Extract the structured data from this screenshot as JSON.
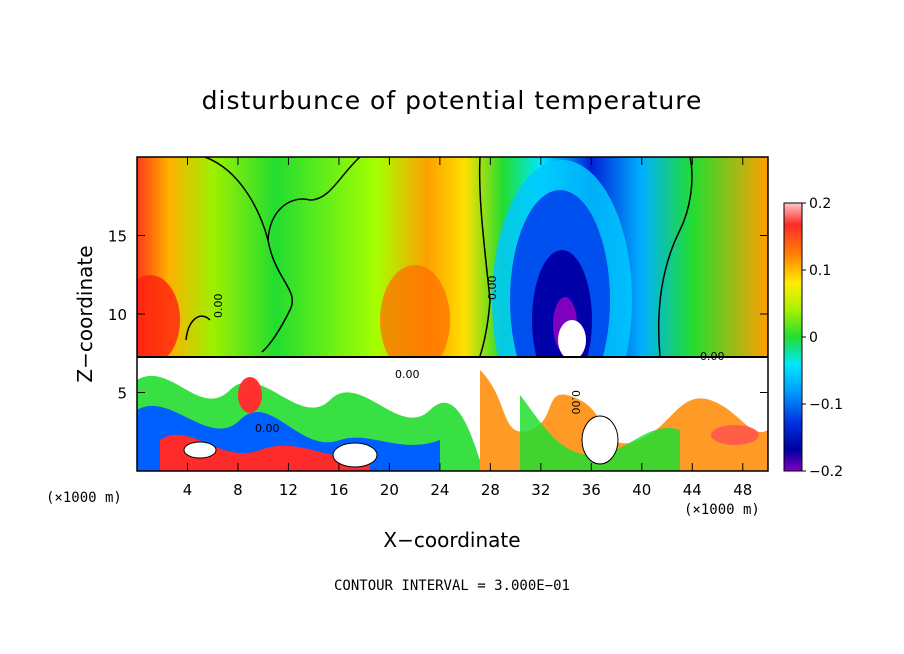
{
  "chart_data": {
    "type": "heatmap",
    "title": "disturbunce of potential temperature",
    "xlabel": "X−coordinate",
    "ylabel": "Z−coordinate",
    "x_unit": "(×1000 m)",
    "x_ticks": [
      4,
      8,
      12,
      16,
      20,
      24,
      28,
      32,
      36,
      40,
      44,
      48
    ],
    "y_ticks": [
      5,
      10,
      15
    ],
    "xlim": [
      0,
      50
    ],
    "ylim": [
      0,
      20
    ],
    "colorbar": {
      "ticks": [
        "0.2",
        "0.1",
        "0",
        "−0.1",
        "−0.2"
      ],
      "range": [
        -0.2,
        0.2
      ]
    },
    "contour_labels": [
      "0.00",
      "0.00",
      "0.00",
      "0.00",
      "0.00",
      "0.00"
    ],
    "note": "CONTOUR INTERVAL = 3.000E−01"
  }
}
